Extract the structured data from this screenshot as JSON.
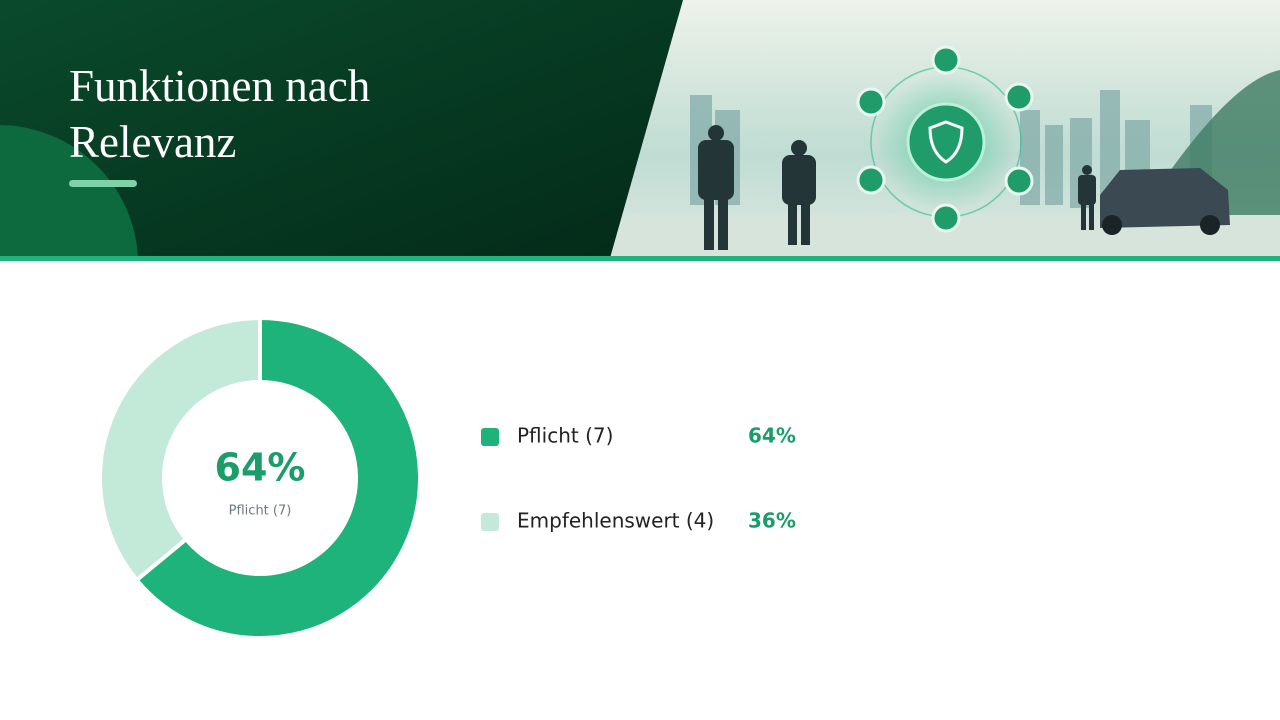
{
  "chart_data": {
    "type": "donut",
    "title": "Funktionen nach Relevanz",
    "categories": [
      "Pflicht (7)",
      "Empfehlenswert (4)"
    ],
    "values": [
      64,
      36
    ],
    "value_labels": [
      "64%",
      "36%"
    ],
    "colors": [
      "#1db37a",
      "#c3ead9"
    ]
  }
}
